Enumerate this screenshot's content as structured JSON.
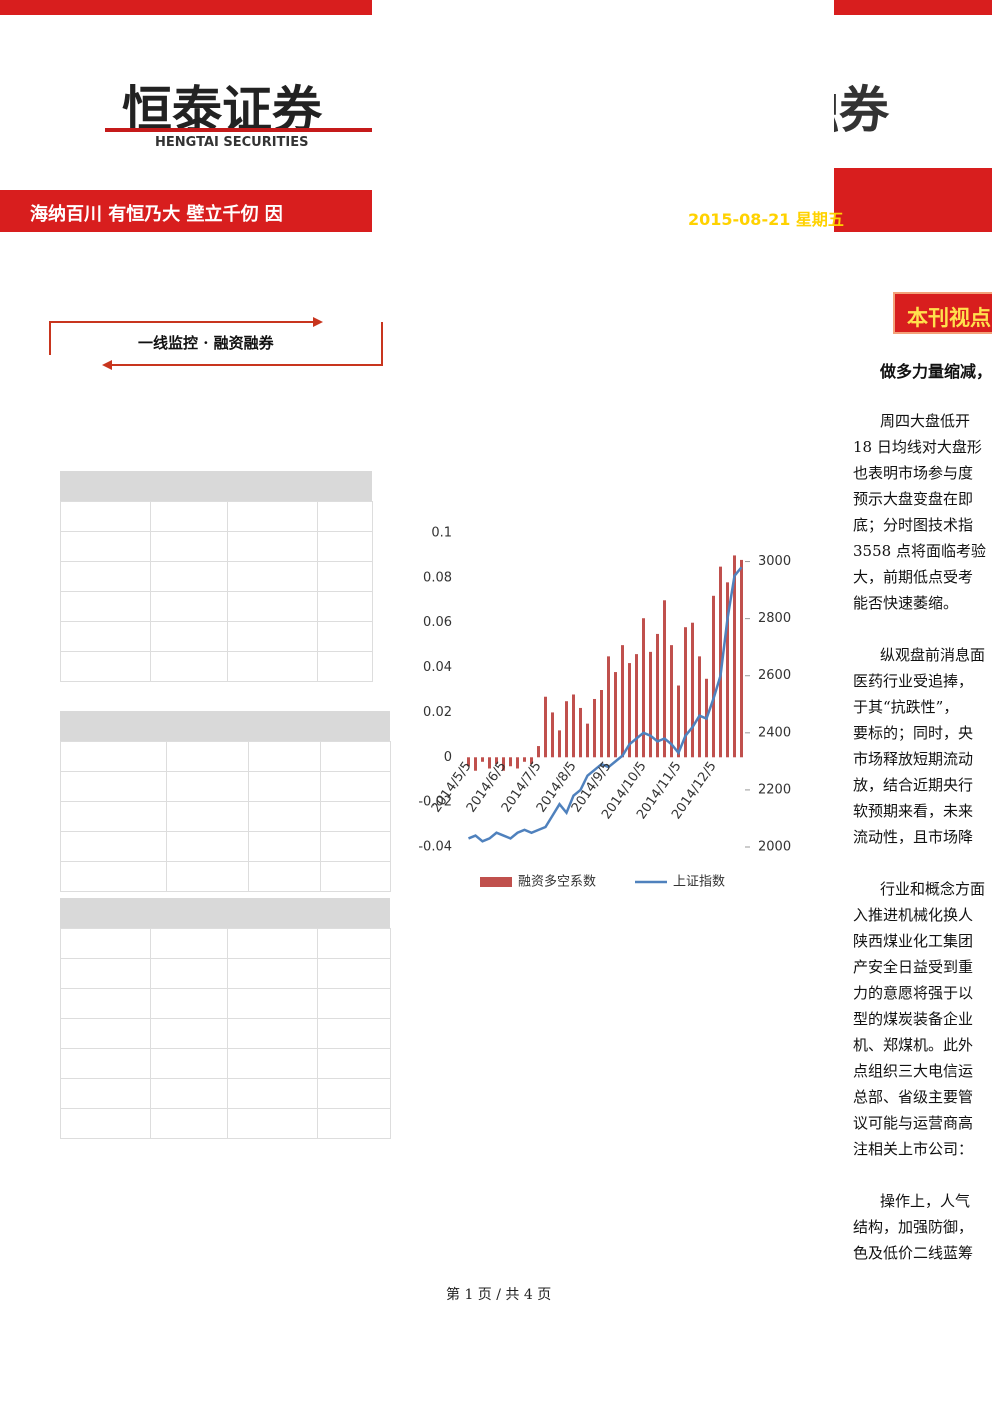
{
  "header": {
    "logo": "恒泰证券",
    "logo_en": "HENGTAI SECURITIES",
    "slogan": "海纳百川 有恒乃大 壁立千仞 因",
    "logo_right": "融券",
    "date": "2015-08-21 星期五"
  },
  "box_title": "一线监控 · 融资融券",
  "section_title": "本刊视点",
  "headline": "做多力量缩减，",
  "paragraphs": [
    [
      "周四大盘低开",
      "18 日均线对大盘形",
      "也表明市场参与度",
      "预示大盘变盘在即",
      "底；分时图技术指",
      "3558 点将面临考验",
      "大，前期低点受考",
      "能否快速萎缩。"
    ],
    [
      "纵观盘前消息面",
      "医药行业受追捧，",
      "于其“抗跌性”，",
      "要标的；同时，央",
      "市场释放短期流动",
      "放，结合近期央行",
      "软预期来看，未来",
      "流动性，且市场降"
    ],
    [
      "行业和概念方面",
      "入推进机械化换人",
      "陕西煤业化工集团",
      "产安全日益受到重",
      "力的意愿将强于以",
      "型的煤炭装备企业",
      "机、郑煤机。此外",
      "点组织三大电信运",
      "总部、省级主要管",
      "议可能与运营商高",
      "注相关上市公司："
    ],
    [
      "操作上，人气",
      "结构，加强防御，",
      "色及低价二线蓝筹"
    ]
  ],
  "footer": "第 1 页 / 共 4 页",
  "chart_data": {
    "type": "bar",
    "categories": [
      "2014/5/5",
      null,
      null,
      null,
      null,
      "2014/6/5",
      null,
      null,
      null,
      null,
      "2014/7/5",
      null,
      null,
      null,
      null,
      "2014/8/5",
      null,
      null,
      null,
      null,
      "2014/9/5",
      null,
      null,
      null,
      null,
      "2014/10/5",
      null,
      null,
      null,
      null,
      "2014/11/5",
      null,
      null,
      null,
      null,
      "2014/12/5",
      null,
      null,
      null,
      null
    ],
    "series": [
      {
        "name": "融资多空系数",
        "color": "#c0504d",
        "values": [
          -0.004,
          -0.006,
          -0.002,
          -0.005,
          -0.003,
          -0.006,
          -0.004,
          -0.005,
          -0.002,
          -0.003,
          0.005,
          0.027,
          0.02,
          0.012,
          0.025,
          0.028,
          0.022,
          0.015,
          0.026,
          0.03,
          0.045,
          0.038,
          0.05,
          0.042,
          0.046,
          0.062,
          0.047,
          0.055,
          0.07,
          0.05,
          0.032,
          0.058,
          0.06,
          0.045,
          0.035,
          0.072,
          0.085,
          0.078,
          0.09,
          0.088
        ]
      },
      {
        "name": "上证指数",
        "color": "#4f81bd",
        "type": "line",
        "axis": "y2",
        "values": [
          2030,
          2040,
          2020,
          2030,
          2050,
          2040,
          2030,
          2050,
          2060,
          2050,
          2060,
          2070,
          2110,
          2150,
          2120,
          2180,
          2200,
          2250,
          2270,
          2290,
          2280,
          2300,
          2320,
          2360,
          2380,
          2400,
          2390,
          2370,
          2380,
          2360,
          2330,
          2390,
          2420,
          2460,
          2450,
          2520,
          2600,
          2800,
          2950,
          2980
        ]
      }
    ],
    "ylim": [
      -0.04,
      0.1
    ],
    "yticks": [
      -0.04,
      -0.02,
      0,
      0.02,
      0.04,
      0.06,
      0.08,
      0.1
    ],
    "y2lim": [
      2000,
      3100
    ],
    "y2ticks": [
      2000,
      2200,
      2400,
      2600,
      2800,
      3000
    ],
    "legend": "bottom"
  }
}
